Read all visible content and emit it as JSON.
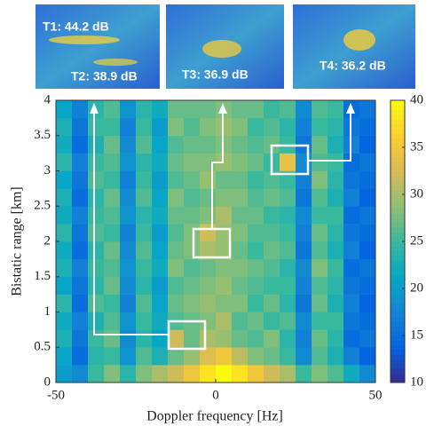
{
  "chart_data": {
    "type": "heatmap",
    "xlabel": "Doppler frequency [Hz]",
    "ylabel": "Bistatic range [km]",
    "xlim": [
      -50,
      50
    ],
    "ylim": [
      0,
      4
    ],
    "xticks": [
      -50,
      0,
      50
    ],
    "yticks": [
      0,
      0.5,
      1,
      1.5,
      2,
      2.5,
      3,
      3.5,
      4
    ],
    "xbins": [
      -50,
      -45,
      -40,
      -35,
      -30,
      -25,
      -20,
      -15,
      -10,
      -5,
      0,
      5,
      10,
      15,
      20,
      25,
      30,
      35,
      40,
      45,
      50
    ],
    "ybins": [
      0,
      0.25,
      0.5,
      0.75,
      1,
      1.25,
      1.5,
      1.75,
      2,
      2.25,
      2.5,
      2.75,
      3,
      3.25,
      3.5,
      3.75,
      4
    ],
    "values": [
      [
        20,
        18,
        25,
        28,
        24,
        28,
        30,
        32,
        35,
        38,
        40,
        38,
        35,
        32,
        30,
        25,
        28,
        26,
        22,
        18
      ],
      [
        21,
        15,
        24,
        25,
        19,
        26,
        23,
        27,
        29,
        33,
        35,
        31,
        28,
        27,
        25,
        18,
        26,
        23,
        17,
        14
      ],
      [
        23,
        16,
        25,
        27,
        18,
        24,
        21,
        32,
        27,
        30,
        29,
        27,
        26,
        28,
        24,
        17,
        27,
        24,
        15,
        16
      ],
      [
        22,
        17,
        23,
        26,
        19,
        25,
        22,
        26,
        27,
        28,
        30,
        26,
        27,
        25,
        26,
        18,
        25,
        25,
        16,
        15
      ],
      [
        24,
        15,
        26,
        25,
        17,
        26,
        21,
        27,
        28,
        29,
        28,
        28,
        25,
        27,
        24,
        16,
        27,
        23,
        17,
        14
      ],
      [
        21,
        16,
        24,
        27,
        18,
        24,
        20,
        26,
        27,
        28,
        29,
        27,
        26,
        25,
        25,
        17,
        26,
        24,
        16,
        15
      ],
      [
        23,
        17,
        25,
        26,
        19,
        25,
        22,
        28,
        26,
        27,
        28,
        28,
        27,
        26,
        24,
        18,
        28,
        25,
        15,
        16
      ],
      [
        22,
        15,
        24,
        27,
        18,
        26,
        21,
        27,
        28,
        30,
        29,
        27,
        25,
        27,
        26,
        16,
        26,
        23,
        17,
        14
      ],
      [
        24,
        16,
        26,
        25,
        17,
        25,
        20,
        26,
        28,
        32,
        29,
        28,
        26,
        26,
        25,
        17,
        27,
        24,
        16,
        15
      ],
      [
        22,
        17,
        25,
        26,
        19,
        24,
        22,
        27,
        27,
        28,
        30,
        27,
        27,
        25,
        24,
        18,
        25,
        25,
        15,
        16
      ],
      [
        23,
        15,
        24,
        27,
        18,
        26,
        21,
        28,
        26,
        27,
        28,
        28,
        26,
        27,
        26,
        16,
        26,
        23,
        17,
        14
      ],
      [
        21,
        16,
        26,
        25,
        17,
        25,
        20,
        26,
        27,
        29,
        27,
        27,
        25,
        26,
        25,
        17,
        28,
        24,
        16,
        15
      ],
      [
        24,
        17,
        25,
        26,
        19,
        24,
        22,
        27,
        28,
        28,
        29,
        28,
        27,
        25,
        34,
        18,
        26,
        25,
        15,
        16
      ],
      [
        22,
        15,
        23,
        27,
        18,
        26,
        21,
        26,
        27,
        27,
        28,
        27,
        26,
        27,
        25,
        16,
        27,
        23,
        17,
        14
      ],
      [
        23,
        16,
        25,
        25,
        17,
        25,
        20,
        28,
        26,
        28,
        29,
        28,
        25,
        26,
        24,
        17,
        25,
        24,
        16,
        15
      ],
      [
        21,
        17,
        24,
        26,
        19,
        24,
        22,
        27,
        27,
        27,
        28,
        27,
        27,
        25,
        26,
        18,
        26,
        25,
        15,
        16
      ]
    ],
    "colorbar": {
      "lim": [
        10,
        40
      ],
      "ticks": [
        10,
        15,
        20,
        25,
        30,
        35,
        40
      ]
    },
    "colormap": [
      "#352a87",
      "#0363e1",
      "#1485d4",
      "#06a7c6",
      "#38b99e",
      "#92bf73",
      "#d9ba56",
      "#fcce2e",
      "#f9fb0e"
    ],
    "annotations": [
      "T1: 44.2 dB",
      "T2: 38.9 dB",
      "T3: 36.9 dB",
      "T4: 36.2 dB"
    ]
  }
}
